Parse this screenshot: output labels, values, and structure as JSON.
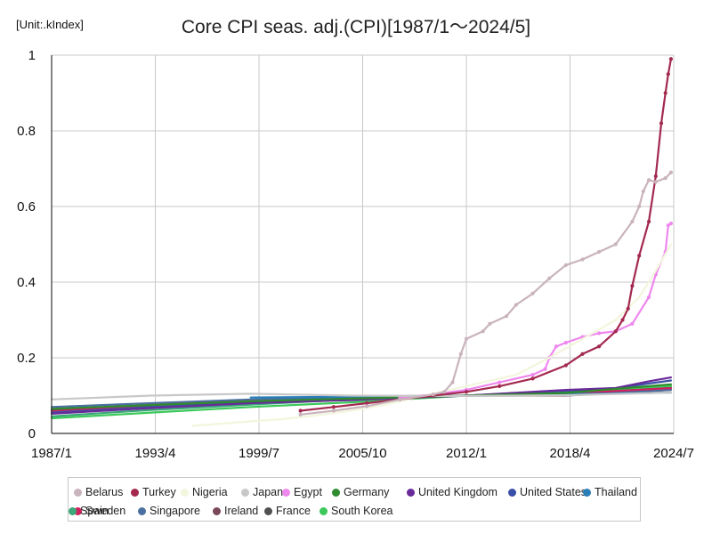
{
  "unit_label": "[Unit:.kIndex]",
  "chart_data": {
    "type": "line",
    "title": "Core CPI seas. adj.(CPI)[1987/1〜2024/5]",
    "xlabel": "",
    "ylabel": "",
    "xlim": [
      "1987-01",
      "2024-07"
    ],
    "ylim": [
      0,
      1
    ],
    "grid": true,
    "legend_position": "bottom",
    "x_ticks": [
      "1987/1",
      "1993/4",
      "1999/7",
      "2005/10",
      "2012/1",
      "2018/4",
      "2024/7"
    ],
    "y_ticks": [
      "0",
      "0.2",
      "0.4",
      "0.6",
      "0.8",
      "1"
    ],
    "series": [
      {
        "name": "Belarus",
        "color": "#c9b3bd",
        "marker": true,
        "points": [
          [
            "2002-01",
            0.05
          ],
          [
            "2004-01",
            0.06
          ],
          [
            "2006-01",
            0.072
          ],
          [
            "2008-01",
            0.09
          ],
          [
            "2010-01",
            0.103
          ],
          [
            "2010-09",
            0.11
          ],
          [
            "2011-03",
            0.135
          ],
          [
            "2011-09",
            0.21
          ],
          [
            "2012-01",
            0.25
          ],
          [
            "2013-01",
            0.27
          ],
          [
            "2013-06",
            0.29
          ],
          [
            "2014-06",
            0.31
          ],
          [
            "2015-01",
            0.34
          ],
          [
            "2016-01",
            0.37
          ],
          [
            "2017-01",
            0.41
          ],
          [
            "2018-01",
            0.445
          ],
          [
            "2019-01",
            0.46
          ],
          [
            "2020-01",
            0.48
          ],
          [
            "2021-01",
            0.5
          ],
          [
            "2022-01",
            0.56
          ],
          [
            "2022-06",
            0.6
          ],
          [
            "2022-09",
            0.64
          ],
          [
            "2023-01",
            0.67
          ],
          [
            "2023-06",
            0.665
          ],
          [
            "2024-01",
            0.675
          ],
          [
            "2024-05",
            0.69
          ]
        ]
      },
      {
        "name": "Turkey",
        "color": "#a3294f",
        "marker": true,
        "points": [
          [
            "2002-01",
            0.06
          ],
          [
            "2004-01",
            0.07
          ],
          [
            "2006-01",
            0.08
          ],
          [
            "2008-01",
            0.09
          ],
          [
            "2010-01",
            0.1
          ],
          [
            "2012-01",
            0.11
          ],
          [
            "2014-01",
            0.125
          ],
          [
            "2016-01",
            0.145
          ],
          [
            "2018-01",
            0.18
          ],
          [
            "2019-01",
            0.21
          ],
          [
            "2020-01",
            0.23
          ],
          [
            "2021-01",
            0.27
          ],
          [
            "2021-06",
            0.3
          ],
          [
            "2021-10",
            0.33
          ],
          [
            "2022-01",
            0.39
          ],
          [
            "2022-06",
            0.47
          ],
          [
            "2023-01",
            0.56
          ],
          [
            "2023-06",
            0.68
          ],
          [
            "2023-10",
            0.82
          ],
          [
            "2024-01",
            0.9
          ],
          [
            "2024-03",
            0.95
          ],
          [
            "2024-05",
            0.99
          ]
        ]
      },
      {
        "name": "Nigeria",
        "color": "#f2f6dc",
        "marker": false,
        "points": [
          [
            "1995-07",
            0.02
          ],
          [
            "1997-01",
            0.025
          ],
          [
            "1999-01",
            0.032
          ],
          [
            "2001-01",
            0.038
          ],
          [
            "2003-01",
            0.048
          ],
          [
            "2005-01",
            0.06
          ],
          [
            "2007-01",
            0.075
          ],
          [
            "2009-01",
            0.095
          ],
          [
            "2011-01",
            0.115
          ],
          [
            "2013-01",
            0.135
          ],
          [
            "2015-01",
            0.155
          ],
          [
            "2017-01",
            0.2
          ],
          [
            "2019-01",
            0.25
          ],
          [
            "2021-01",
            0.3
          ],
          [
            "2022-06",
            0.36
          ],
          [
            "2023-06",
            0.43
          ],
          [
            "2024-05",
            0.5
          ]
        ]
      },
      {
        "name": "Japan",
        "color": "#c8c8c8",
        "marker": false,
        "points": [
          [
            "1987-01",
            0.09
          ],
          [
            "1993-01",
            0.1
          ],
          [
            "1999-01",
            0.105
          ],
          [
            "2005-01",
            0.1
          ],
          [
            "2012-01",
            0.099
          ],
          [
            "2018-01",
            0.101
          ],
          [
            "2024-05",
            0.108
          ]
        ]
      },
      {
        "name": "Egypt",
        "color": "#ee88ee",
        "marker": true,
        "points": [
          [
            "2008-01",
            0.095
          ],
          [
            "2010-01",
            0.103
          ],
          [
            "2012-01",
            0.115
          ],
          [
            "2014-01",
            0.135
          ],
          [
            "2016-01",
            0.155
          ],
          [
            "2016-10",
            0.17
          ],
          [
            "2017-01",
            0.2
          ],
          [
            "2017-06",
            0.23
          ],
          [
            "2018-01",
            0.24
          ],
          [
            "2019-01",
            0.255
          ],
          [
            "2020-01",
            0.265
          ],
          [
            "2021-01",
            0.27
          ],
          [
            "2022-01",
            0.29
          ],
          [
            "2023-01",
            0.36
          ],
          [
            "2023-06",
            0.42
          ],
          [
            "2024-01",
            0.48
          ],
          [
            "2024-03",
            0.55
          ],
          [
            "2024-05",
            0.555
          ]
        ]
      },
      {
        "name": "Germany",
        "color": "#2e8b2e",
        "marker": false,
        "points": [
          [
            "1987-01",
            0.065
          ],
          [
            "1993-01",
            0.075
          ],
          [
            "1999-01",
            0.085
          ],
          [
            "2005-01",
            0.092
          ],
          [
            "2012-01",
            0.1
          ],
          [
            "2018-01",
            0.107
          ],
          [
            "2024-05",
            0.13
          ]
        ]
      },
      {
        "name": "United Kingdom",
        "color": "#6a2a9a",
        "marker": false,
        "points": [
          [
            "1987-01",
            0.052
          ],
          [
            "1993-01",
            0.067
          ],
          [
            "1999-01",
            0.08
          ],
          [
            "2005-01",
            0.088
          ],
          [
            "2012-01",
            0.1
          ],
          [
            "2018-01",
            0.115
          ],
          [
            "2021-01",
            0.12
          ],
          [
            "2023-01",
            0.138
          ],
          [
            "2024-05",
            0.148
          ]
        ]
      },
      {
        "name": "United States",
        "color": "#3a4fa8",
        "marker": false,
        "points": [
          [
            "1987-01",
            0.055
          ],
          [
            "1993-01",
            0.07
          ],
          [
            "1999-01",
            0.082
          ],
          [
            "2005-01",
            0.092
          ],
          [
            "2012-01",
            0.1
          ],
          [
            "2018-01",
            0.113
          ],
          [
            "2021-01",
            0.12
          ],
          [
            "2024-05",
            0.14
          ]
        ]
      },
      {
        "name": "Thailand",
        "color": "#2a7fb8",
        "marker": false,
        "points": [
          [
            "1999-01",
            0.095
          ],
          [
            "2005-01",
            0.097
          ],
          [
            "2012-01",
            0.1
          ],
          [
            "2018-01",
            0.104
          ],
          [
            "2024-05",
            0.108
          ]
        ]
      },
      {
        "name": "Sweden",
        "color": "#d02060",
        "marker": false,
        "points": [
          [
            "1987-01",
            0.058
          ],
          [
            "1993-01",
            0.075
          ],
          [
            "1999-01",
            0.085
          ],
          [
            "2005-01",
            0.09
          ],
          [
            "2012-01",
            0.1
          ],
          [
            "2018-01",
            0.105
          ],
          [
            "2024-05",
            0.12
          ]
        ]
      },
      {
        "name": "Singapore",
        "color": "#4a6fa0",
        "marker": false,
        "points": [
          [
            "1987-01",
            0.07
          ],
          [
            "1993-01",
            0.08
          ],
          [
            "1999-01",
            0.09
          ],
          [
            "2005-01",
            0.095
          ],
          [
            "2012-01",
            0.1
          ],
          [
            "2018-01",
            0.104
          ],
          [
            "2024-05",
            0.115
          ]
        ]
      },
      {
        "name": "Ireland",
        "color": "#7a4858",
        "marker": false,
        "points": [
          [
            "1987-01",
            0.06
          ],
          [
            "1993-01",
            0.072
          ],
          [
            "1999-01",
            0.082
          ],
          [
            "2005-01",
            0.098
          ],
          [
            "2012-01",
            0.1
          ],
          [
            "2018-01",
            0.1
          ],
          [
            "2024-05",
            0.115
          ]
        ]
      },
      {
        "name": "France",
        "color": "#505050",
        "marker": false,
        "points": [
          [
            "1987-01",
            0.062
          ],
          [
            "1993-01",
            0.075
          ],
          [
            "1999-01",
            0.085
          ],
          [
            "2005-01",
            0.092
          ],
          [
            "2012-01",
            0.1
          ],
          [
            "2018-01",
            0.104
          ],
          [
            "2024-05",
            0.12
          ]
        ]
      },
      {
        "name": "South Korea",
        "color": "#3cc85a",
        "marker": false,
        "points": [
          [
            "1987-01",
            0.04
          ],
          [
            "1993-01",
            0.055
          ],
          [
            "1999-01",
            0.07
          ],
          [
            "2005-01",
            0.082
          ],
          [
            "2012-01",
            0.1
          ],
          [
            "2018-01",
            0.11
          ],
          [
            "2024-05",
            0.125
          ]
        ]
      },
      {
        "name": "Spain",
        "color": "#3aa878",
        "marker": false,
        "points": [
          [
            "1987-01",
            0.045
          ],
          [
            "1993-01",
            0.062
          ],
          [
            "1999-01",
            0.076
          ],
          [
            "2005-01",
            0.09
          ],
          [
            "2012-01",
            0.1
          ],
          [
            "2018-01",
            0.106
          ],
          [
            "2024-05",
            0.125
          ]
        ]
      }
    ]
  }
}
